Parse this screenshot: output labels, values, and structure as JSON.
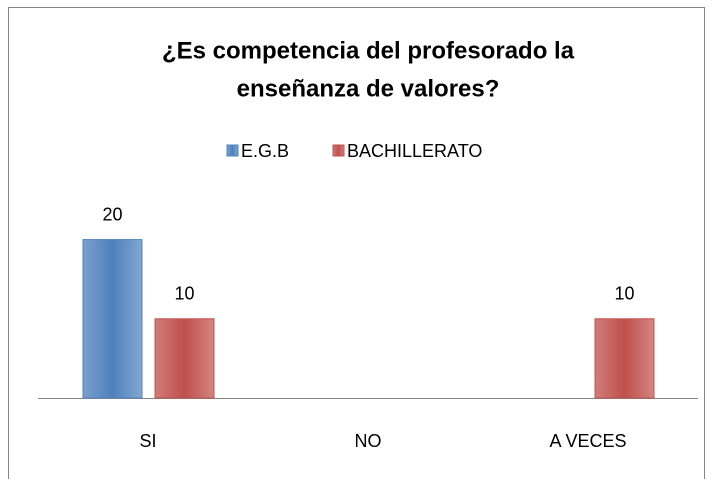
{
  "chart_data": {
    "type": "bar",
    "title_lines": [
      "¿Es competencia del profesorado la",
      "enseñanza de valores?"
    ],
    "categories": [
      "SI",
      "NO",
      "A VECES"
    ],
    "series": [
      {
        "name": "E.G.B",
        "color": "#4f81bd",
        "values": [
          20,
          null,
          null
        ]
      },
      {
        "name": "BACHILLERATO",
        "color": "#c0504d",
        "values": [
          10,
          null,
          10
        ]
      }
    ],
    "ylim": [
      0,
      25
    ]
  }
}
